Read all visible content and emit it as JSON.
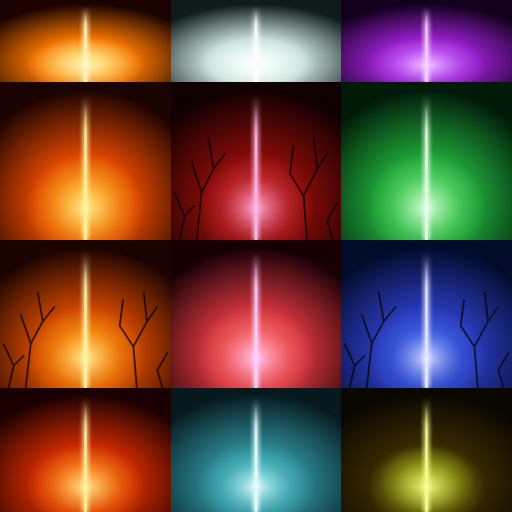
{
  "image": {
    "description_free": true,
    "layout": {
      "columns": 3,
      "rows": 4
    },
    "tiles": [
      {
        "name": "tile-orange-top",
        "bg": "#1a0300",
        "glow": "#ff7a00",
        "core": "#ffe27a",
        "beam": "#fff6c0",
        "trees": false
      },
      {
        "name": "tile-white-top",
        "bg": "#0f1a1a",
        "glow": "#cfe8e4",
        "core": "#f2fffc",
        "beam": "#ffffff",
        "trees": false
      },
      {
        "name": "tile-purple-top",
        "bg": "#12001c",
        "glow": "#9a1fd0",
        "core": "#c865ff",
        "beam": "#f6d0ff",
        "trees": false
      },
      {
        "name": "tile-red-orange",
        "bg": "#1a0300",
        "glow": "#e84a00",
        "core": "#ffb020",
        "beam": "#fff3a0",
        "trees": false
      },
      {
        "name": "tile-red-forest",
        "bg": "#120000",
        "glow": "#8a0c08",
        "core": "#d4303a",
        "beam": "#ffb8e8",
        "trees": true
      },
      {
        "name": "tile-green",
        "bg": "#001a08",
        "glow": "#1fa83a",
        "core": "#62e070",
        "beam": "#e6ffe8",
        "trees": false
      },
      {
        "name": "tile-orange-forest",
        "bg": "#1a0300",
        "glow": "#d84a00",
        "core": "#ff9c10",
        "beam": "#fff4a8",
        "trees": true
      },
      {
        "name": "tile-pink-red",
        "bg": "#160006",
        "glow": "#d8363e",
        "core": "#ff7070",
        "beam": "#ffd0ff",
        "trees": false
      },
      {
        "name": "tile-blue-forest",
        "bg": "#020b2a",
        "glow": "#2a3cc0",
        "core": "#3f66e8",
        "beam": "#e8e8ff",
        "trees": true
      },
      {
        "name": "tile-orange-bottom",
        "bg": "#1a0000",
        "glow": "#d42c00",
        "core": "#ff8c1a",
        "beam": "#fff0a0",
        "trees": false
      },
      {
        "name": "tile-teal-bottom",
        "bg": "#061a1e",
        "glow": "#2c8a96",
        "core": "#58c4cc",
        "beam": "#e8ffff",
        "trees": false
      },
      {
        "name": "tile-yellow-bottom",
        "bg": "#0a0700",
        "glow": "#3c2c00",
        "core": "#a8b81a",
        "beam": "#f6ff90",
        "trees": false
      }
    ]
  }
}
